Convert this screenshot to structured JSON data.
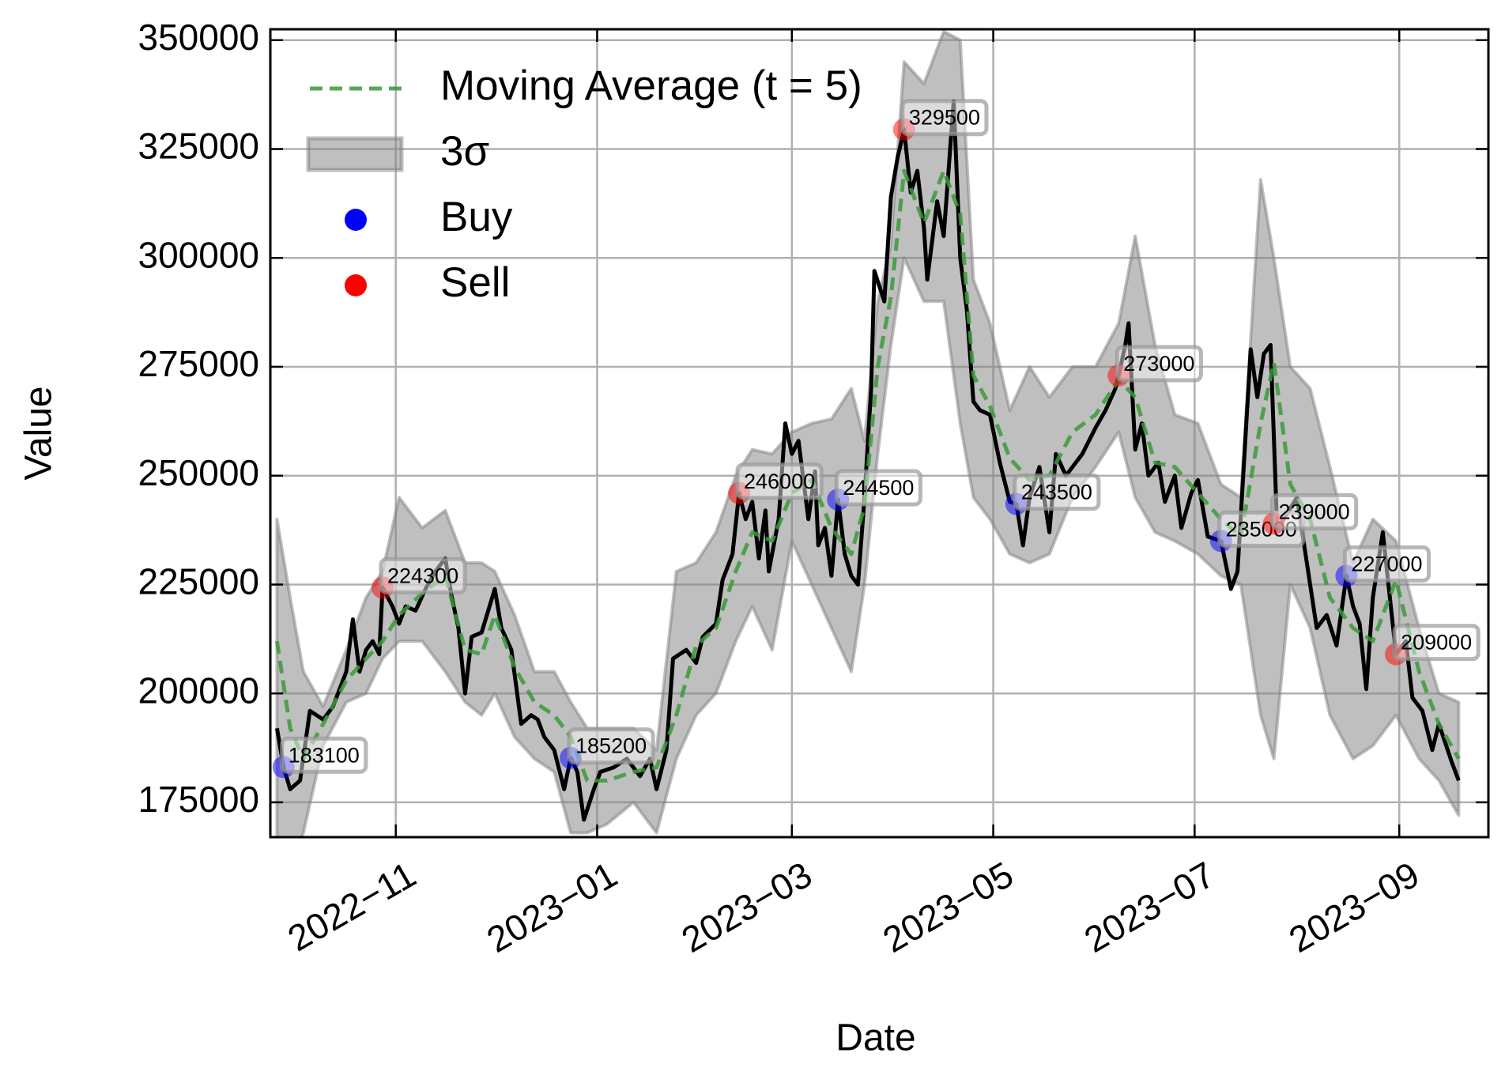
{
  "chart_data": {
    "type": "line",
    "xlabel": "Date",
    "ylabel": "Value",
    "xlim": [
      -38,
      331
    ],
    "ylim": [
      167000,
      352500
    ],
    "xticks": [
      {
        "value": 0,
        "label": "2022−11"
      },
      {
        "value": 61,
        "label": "2023−01"
      },
      {
        "value": 120,
        "label": "2023−03"
      },
      {
        "value": 181,
        "label": "2023−05"
      },
      {
        "value": 242,
        "label": "2023−07"
      },
      {
        "value": 304,
        "label": "2023−09"
      }
    ],
    "yticks": [
      175000,
      200000,
      225000,
      250000,
      275000,
      300000,
      325000,
      350000
    ],
    "grid": true,
    "legend": "upper left",
    "series": [
      {
        "type": "line",
        "color": "#000000",
        "x": [
          -36,
          -34,
          -32,
          -29,
          -26,
          -22,
          -19,
          -15,
          -13,
          -11,
          -9,
          -7,
          -5,
          -4,
          -1,
          1,
          3,
          6,
          9,
          12,
          15,
          17,
          19,
          21,
          23,
          26,
          30,
          32,
          35,
          38,
          41,
          43,
          45,
          48,
          51,
          53,
          55,
          57,
          60,
          62,
          66,
          70,
          74,
          77,
          79,
          82,
          84,
          88,
          91,
          93,
          97,
          99,
          102,
          104,
          106,
          108,
          110,
          112,
          113,
          116,
          118,
          120,
          122,
          125,
          127,
          128,
          130,
          132,
          134,
          136,
          138,
          140,
          142,
          144,
          145,
          148,
          150,
          152,
          154,
          156,
          158,
          160,
          161,
          164,
          166,
          169,
          171,
          173,
          175,
          177,
          180,
          183,
          186,
          188,
          190,
          192,
          195,
          198,
          200,
          203,
          205,
          208,
          212,
          215,
          218,
          219,
          221,
          222,
          224,
          226,
          228,
          231,
          233,
          236,
          238,
          241,
          243,
          246,
          250,
          253,
          255,
          259,
          261,
          263,
          265,
          267,
          269,
          273,
          276,
          279,
          282,
          285,
          288,
          290,
          292,
          294,
          296,
          299,
          303,
          306,
          308,
          311,
          314,
          316,
          320,
          322
        ],
        "values": [
          192000,
          183100,
          178000,
          180000,
          196000,
          194000,
          197000,
          205000,
          217000,
          205000,
          210000,
          212000,
          209000,
          224300,
          220000,
          216000,
          220000,
          219000,
          224000,
          228000,
          231000,
          222000,
          215000,
          200000,
          213000,
          214000,
          224000,
          215000,
          210000,
          193000,
          195000,
          194000,
          190000,
          187000,
          178000,
          185200,
          182000,
          171000,
          178000,
          182000,
          183000,
          185000,
          181000,
          185000,
          178000,
          187000,
          208000,
          210000,
          207000,
          213000,
          216000,
          226000,
          232000,
          246000,
          240000,
          244000,
          231000,
          242000,
          228000,
          240000,
          262000,
          255000,
          258000,
          240000,
          251000,
          234000,
          238000,
          227000,
          244500,
          232000,
          227000,
          225000,
          245000,
          270000,
          297000,
          290000,
          314000,
          323000,
          329500,
          315000,
          320000,
          307000,
          295000,
          313000,
          305000,
          336000,
          300000,
          288000,
          267000,
          265000,
          264000,
          253000,
          244000,
          243500,
          234000,
          245000,
          252000,
          237000,
          255000,
          250000,
          252000,
          255000,
          261000,
          265000,
          270000,
          273000,
          280000,
          285000,
          256000,
          262000,
          250000,
          253000,
          244000,
          250000,
          238000,
          246000,
          249000,
          236000,
          235000,
          224000,
          228000,
          279000,
          268000,
          278000,
          280000,
          238000,
          240000,
          245000,
          230000,
          215000,
          218000,
          211000,
          227000,
          220000,
          216000,
          201000,
          222000,
          237000,
          209000,
          212000,
          199000,
          196000,
          187000,
          193000,
          184000,
          180000
        ]
      },
      {
        "type": "line",
        "name": "Moving Average (t = 5)",
        "color": "#3a9a3a",
        "dashed": true,
        "x": [
          -36,
          -32,
          -28,
          -22,
          -15,
          -9,
          -4,
          1,
          8,
          15,
          21,
          26,
          30,
          36,
          42,
          48,
          53,
          58,
          64,
          72,
          79,
          85,
          91,
          97,
          103,
          108,
          114,
          120,
          126,
          132,
          138,
          142,
          146,
          150,
          154,
          160,
          166,
          171,
          175,
          180,
          186,
          192,
          198,
          205,
          212,
          219,
          224,
          230,
          236,
          243,
          250,
          256,
          262,
          266,
          271,
          277,
          283,
          290,
          296,
          303,
          310,
          316,
          322
        ],
        "values": [
          212000,
          192000,
          185000,
          193000,
          203000,
          208000,
          212000,
          218000,
          223000,
          227000,
          210000,
          209000,
          218000,
          206000,
          198000,
          195000,
          190000,
          180000,
          180000,
          182000,
          183000,
          195000,
          211000,
          215000,
          228000,
          237000,
          235000,
          246000,
          249000,
          238000,
          232000,
          243000,
          275000,
          291000,
          320000,
          308000,
          320000,
          310000,
          273000,
          266000,
          254000,
          249000,
          250000,
          260000,
          264000,
          272000,
          268000,
          253000,
          252000,
          246000,
          240000,
          236000,
          262000,
          276000,
          248000,
          240000,
          222000,
          215000,
          212000,
          226000,
          205000,
          193000,
          185000
        ]
      },
      {
        "type": "band",
        "name": "3σ",
        "color": "#808080",
        "x": [
          -36,
          -32,
          -28,
          -22,
          -15,
          -9,
          -4,
          1,
          8,
          15,
          21,
          26,
          30,
          36,
          42,
          48,
          53,
          58,
          64,
          72,
          79,
          85,
          91,
          97,
          103,
          108,
          114,
          120,
          126,
          132,
          138,
          142,
          146,
          150,
          154,
          160,
          166,
          171,
          175,
          180,
          186,
          192,
          198,
          205,
          212,
          219,
          224,
          230,
          236,
          243,
          250,
          256,
          262,
          266,
          271,
          277,
          283,
          290,
          296,
          303,
          310,
          316,
          322
        ],
        "upper": [
          240000,
          222000,
          205000,
          197000,
          210000,
          222000,
          228000,
          245000,
          238000,
          242000,
          230000,
          230000,
          228000,
          218000,
          205000,
          205000,
          198000,
          192000,
          192000,
          192000,
          187000,
          228000,
          230000,
          237000,
          250000,
          256000,
          255000,
          260000,
          262000,
          263000,
          270000,
          258000,
          290000,
          303000,
          345000,
          340000,
          352000,
          350000,
          295000,
          285000,
          265000,
          275000,
          268000,
          275000,
          275000,
          285000,
          305000,
          280000,
          264000,
          262000,
          248000,
          245000,
          318000,
          300000,
          275000,
          270000,
          252000,
          230000,
          240000,
          235000,
          215000,
          200000,
          198000
        ],
        "lower": [
          160000,
          160000,
          168000,
          188000,
          198000,
          200000,
          208000,
          212000,
          212000,
          205000,
          198000,
          195000,
          200000,
          190000,
          185000,
          182000,
          168000,
          168000,
          170000,
          175000,
          168000,
          185000,
          195000,
          200000,
          212000,
          220000,
          210000,
          235000,
          225000,
          215000,
          205000,
          225000,
          255000,
          280000,
          300000,
          290000,
          290000,
          262000,
          245000,
          240000,
          232000,
          230000,
          232000,
          245000,
          252000,
          260000,
          245000,
          237000,
          235000,
          232000,
          227000,
          225000,
          195000,
          185000,
          225000,
          215000,
          195000,
          185000,
          188000,
          195000,
          185000,
          180000,
          172000
        ]
      },
      {
        "type": "scatter",
        "name": "Buy",
        "color": "#0000ff",
        "x": [
          -34,
          53,
          134,
          188,
          250,
          288
        ],
        "values": [
          183100,
          185200,
          244500,
          243500,
          235000,
          227000
        ]
      },
      {
        "type": "scatter",
        "name": "Sell",
        "color": "#ff0000",
        "x": [
          -4,
          104,
          154,
          219,
          266,
          303
        ],
        "values": [
          224300,
          246000,
          329500,
          273000,
          239000,
          209000
        ]
      }
    ]
  }
}
